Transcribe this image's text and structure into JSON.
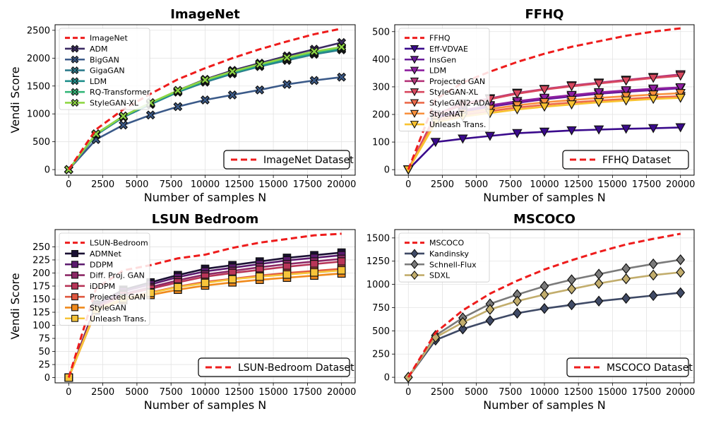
{
  "chart_data": [
    {
      "id": "imagenet",
      "type": "line",
      "title": "ImageNet",
      "xlabel": "Number of samples N",
      "ylabel": "Vendi Score",
      "xlim": [
        -1000,
        21000
      ],
      "ylim": [
        -100,
        2600
      ],
      "xticks": [
        0,
        2500,
        5000,
        7500,
        10000,
        12500,
        15000,
        17500,
        20000
      ],
      "yticks": [
        0,
        500,
        1000,
        1500,
        2000,
        2500
      ],
      "grid": true,
      "legend_position": "upper-left",
      "marker": "X",
      "x": [
        0,
        2000,
        4000,
        6000,
        8000,
        10000,
        12000,
        14000,
        16000,
        18000,
        20000
      ],
      "reference": {
        "name": "ImageNet",
        "legend2": "ImageNet Dataset",
        "color": "#ee1c1c",
        "values": [
          0,
          720,
          1080,
          1360,
          1620,
          1820,
          2000,
          2160,
          2300,
          2430,
          2530
        ]
      },
      "series": [
        {
          "name": "ADM",
          "color": "#3b2a62",
          "values": [
            0,
            640,
            960,
            1190,
            1420,
            1620,
            1780,
            1910,
            2040,
            2160,
            2280
          ]
        },
        {
          "name": "BigGAN",
          "color": "#3b5a89",
          "values": [
            0,
            540,
            800,
            980,
            1130,
            1250,
            1340,
            1430,
            1530,
            1600,
            1660
          ]
        },
        {
          "name": "GigaGAN",
          "color": "#2e7b8c",
          "values": [
            0,
            620,
            940,
            1170,
            1390,
            1570,
            1720,
            1850,
            1960,
            2070,
            2150
          ]
        },
        {
          "name": "LDM",
          "color": "#21908d",
          "values": [
            0,
            630,
            950,
            1180,
            1400,
            1590,
            1740,
            1860,
            1980,
            2090,
            2170
          ]
        },
        {
          "name": "RQ-Transformer",
          "color": "#35b779",
          "values": [
            0,
            640,
            960,
            1200,
            1410,
            1600,
            1750,
            1880,
            2000,
            2100,
            2190
          ]
        },
        {
          "name": "StyleGAN-XL",
          "color": "#8fd744",
          "values": [
            0,
            640,
            960,
            1200,
            1420,
            1610,
            1760,
            1890,
            2010,
            2120,
            2200
          ]
        }
      ]
    },
    {
      "id": "ffhq",
      "type": "line",
      "title": "FFHQ",
      "xlabel": "Number of samples N",
      "ylabel": "",
      "xlim": [
        -1000,
        21000
      ],
      "ylim": [
        -20,
        525
      ],
      "xticks": [
        0,
        2500,
        5000,
        7500,
        10000,
        12500,
        15000,
        17500,
        20000
      ],
      "yticks": [
        0,
        100,
        200,
        300,
        400,
        500
      ],
      "grid": true,
      "legend_position": "upper-left",
      "marker": "v",
      "x": [
        0,
        2000,
        4000,
        6000,
        8000,
        10000,
        12000,
        14000,
        16000,
        18000,
        20000
      ],
      "reference": {
        "name": "FFHQ",
        "legend2": "FFHQ Dataset",
        "color": "#ee1c1c",
        "values": [
          0,
          255,
          315,
          355,
          390,
          420,
          445,
          465,
          485,
          500,
          512
        ]
      },
      "series": [
        {
          "name": "Eff-VDVAE",
          "color": "#3a0a8c",
          "values": [
            0,
            100,
            112,
            122,
            132,
            137,
            142,
            145,
            148,
            150,
            153
          ]
        },
        {
          "name": "InsGen",
          "color": "#6a1b9a",
          "values": [
            0,
            185,
            210,
            228,
            242,
            255,
            265,
            275,
            282,
            288,
            295
          ]
        },
        {
          "name": "LDM",
          "color": "#8e1fa0",
          "values": [
            0,
            190,
            215,
            233,
            248,
            260,
            270,
            280,
            287,
            293,
            298
          ]
        },
        {
          "name": "Projected GAN",
          "color": "#b5367a",
          "values": [
            0,
            200,
            240,
            258,
            278,
            292,
            305,
            315,
            325,
            335,
            345
          ]
        },
        {
          "name": "StyleGAN-XL",
          "color": "#d9485f",
          "values": [
            0,
            195,
            235,
            255,
            275,
            290,
            302,
            312,
            322,
            332,
            340
          ]
        },
        {
          "name": "StyleGAN2-ADA",
          "color": "#ec6a4a",
          "values": [
            0,
            175,
            198,
            212,
            225,
            235,
            243,
            250,
            256,
            262,
            266
          ]
        },
        {
          "name": "StyleNAT",
          "color": "#f9903c",
          "values": [
            0,
            180,
            205,
            220,
            233,
            244,
            252,
            260,
            266,
            272,
            277
          ]
        },
        {
          "name": "Unleash Trans.",
          "color": "#f9c330",
          "values": [
            0,
            170,
            192,
            205,
            218,
            228,
            236,
            244,
            250,
            256,
            260
          ]
        }
      ]
    },
    {
      "id": "lsun",
      "type": "line",
      "title": "LSUN Bedroom",
      "xlabel": "Number of samples N",
      "ylabel": "Vendi Score",
      "xlim": [
        -1000,
        21000
      ],
      "ylim": [
        -10,
        283
      ],
      "xticks": [
        0,
        2500,
        5000,
        7500,
        10000,
        12500,
        15000,
        17500,
        20000
      ],
      "yticks": [
        0,
        25,
        50,
        75,
        100,
        125,
        150,
        175,
        200,
        225,
        250
      ],
      "grid": true,
      "legend_position": "upper-left",
      "marker": "s",
      "x": [
        0,
        2000,
        4000,
        6000,
        8000,
        10000,
        12000,
        14000,
        16000,
        18000,
        20000
      ],
      "reference": {
        "name": "LSUN-Bedroom",
        "legend2": "LSUN-Bedroom Dataset",
        "color": "#ee1c1c",
        "values": [
          0,
          170,
          205,
          215,
          228,
          235,
          248,
          258,
          265,
          272,
          275
        ]
      },
      "series": [
        {
          "name": "ADMNet",
          "color": "#1a1033",
          "values": [
            0,
            140,
            168,
            182,
            196,
            208,
            215,
            222,
            229,
            234,
            239
          ]
        },
        {
          "name": "DDPM",
          "color": "#5b1a6e",
          "values": [
            0,
            138,
            165,
            178,
            192,
            203,
            210,
            217,
            224,
            229,
            234
          ]
        },
        {
          "name": "Diff. Proj. GAN",
          "color": "#8c2866",
          "values": [
            0,
            135,
            160,
            173,
            186,
            197,
            204,
            211,
            217,
            222,
            227
          ]
        },
        {
          "name": "iDDPM",
          "color": "#b83558",
          "values": [
            0,
            133,
            158,
            170,
            182,
            193,
            200,
            206,
            212,
            217,
            222
          ]
        },
        {
          "name": "Projected GAN",
          "color": "#e0573f",
          "values": [
            0,
            130,
            152,
            163,
            174,
            183,
            189,
            195,
            200,
            204,
            208
          ]
        },
        {
          "name": "StyleGAN",
          "color": "#f08a1c",
          "values": [
            0,
            128,
            148,
            158,
            168,
            176,
            182,
            187,
            191,
            195,
            199
          ]
        },
        {
          "name": "Unleash Trans.",
          "color": "#f7c43a",
          "values": [
            0,
            130,
            151,
            162,
            173,
            181,
            188,
            193,
            197,
            201,
            205
          ]
        }
      ]
    },
    {
      "id": "mscoco",
      "type": "line",
      "title": "MSCOCO",
      "xlabel": "Number of samples N",
      "ylabel": "",
      "xlim": [
        -1000,
        21000
      ],
      "ylim": [
        -60,
        1590
      ],
      "xticks": [
        0,
        2500,
        5000,
        7500,
        10000,
        12500,
        15000,
        17500,
        20000
      ],
      "yticks": [
        0,
        250,
        500,
        750,
        1000,
        1250,
        1500
      ],
      "grid": true,
      "legend_position": "upper-left",
      "marker": "D",
      "x": [
        0,
        2000,
        4000,
        6000,
        8000,
        10000,
        12000,
        14000,
        16000,
        18000,
        20000
      ],
      "reference": {
        "name": "MSCOCO",
        "legend2": "MSCOCO Dataset",
        "color": "#ee1c1c",
        "values": [
          0,
          480,
          720,
          900,
          1040,
          1160,
          1260,
          1350,
          1430,
          1490,
          1545
        ]
      },
      "series": [
        {
          "name": "Kandinsky",
          "color": "#3f4a66",
          "values": [
            0,
            400,
            520,
            610,
            690,
            740,
            780,
            820,
            850,
            880,
            910
          ]
        },
        {
          "name": "Schnell-Flux",
          "color": "#7a7a7a",
          "values": [
            0,
            450,
            640,
            790,
            890,
            980,
            1050,
            1110,
            1170,
            1220,
            1265
          ]
        },
        {
          "name": "SDXL",
          "color": "#c2ad6c",
          "values": [
            0,
            430,
            590,
            730,
            820,
            890,
            950,
            1010,
            1060,
            1100,
            1130
          ]
        }
      ]
    }
  ]
}
